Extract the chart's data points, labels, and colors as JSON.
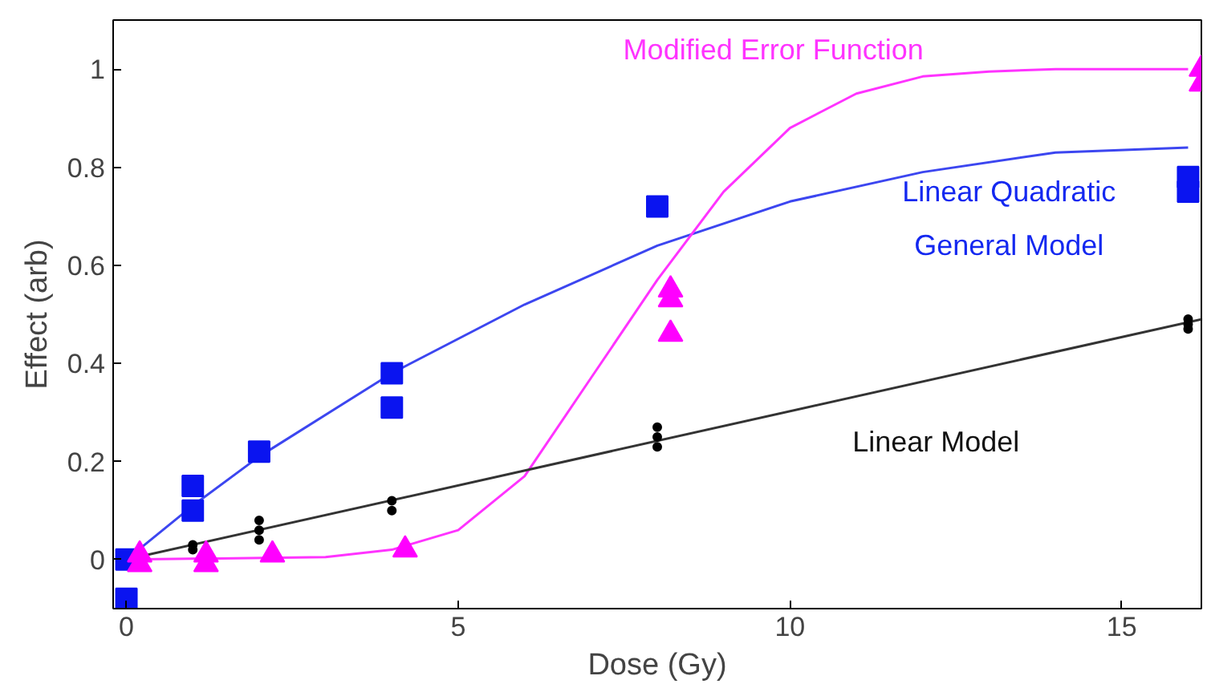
{
  "chart_data": {
    "type": "scatter",
    "xlabel": "Dose (Gy)",
    "ylabel": "Effect (arb)",
    "xlim": [
      -0.2,
      16.2
    ],
    "ylim": [
      -0.1,
      1.1
    ],
    "xticks": [
      0,
      5,
      10,
      15
    ],
    "yticks": [
      0,
      0.2,
      0.4,
      0.6,
      0.8,
      1
    ],
    "grid": false,
    "series": [
      {
        "marker": "square",
        "color": "#0a14f0",
        "x": [
          0,
          0,
          1,
          1,
          2,
          4,
          4,
          8,
          16,
          16
        ],
        "values": [
          0.0,
          -0.08,
          0.15,
          0.1,
          0.22,
          0.38,
          0.31,
          0.72,
          0.78,
          0.75
        ]
      },
      {
        "marker": "triangle",
        "color": "#ff00ff",
        "x": [
          0.2,
          0.2,
          1.2,
          1.2,
          2.2,
          4.2,
          8.2,
          8.2,
          8.2,
          16.2,
          16.2
        ],
        "values": [
          0.01,
          -0.01,
          0.01,
          -0.01,
          0.01,
          0.02,
          0.55,
          0.53,
          0.46,
          1.0,
          0.97
        ]
      },
      {
        "marker": "circle",
        "color": "#000000",
        "x": [
          1,
          1,
          2,
          2,
          2,
          4,
          4,
          8,
          8,
          8,
          16,
          16,
          16
        ],
        "values": [
          0.03,
          0.02,
          0.08,
          0.06,
          0.04,
          0.12,
          0.1,
          0.27,
          0.25,
          0.23,
          0.49,
          0.48,
          0.47
        ]
      },
      {
        "type": "line",
        "color": "#3c46f0",
        "x": [
          0,
          1,
          2,
          4,
          6,
          8,
          10,
          12,
          14,
          16
        ],
        "values": [
          0,
          0.11,
          0.21,
          0.38,
          0.52,
          0.64,
          0.73,
          0.79,
          0.83,
          0.84
        ]
      },
      {
        "type": "line",
        "color": "#ff33ff",
        "x": [
          0,
          3,
          4,
          5,
          6,
          7,
          8,
          9,
          10,
          11,
          12,
          13,
          14,
          16
        ],
        "values": [
          0,
          0.005,
          0.02,
          0.06,
          0.17,
          0.37,
          0.57,
          0.75,
          0.88,
          0.95,
          0.985,
          0.995,
          1.0,
          1.0
        ]
      },
      {
        "type": "line",
        "color": "#333333",
        "x": [
          0,
          16.2
        ],
        "values": [
          0,
          0.49
        ]
      }
    ],
    "annotations": [
      "Modified Error Function",
      "Linear Quadratic",
      "General Model",
      "Linear Model"
    ]
  }
}
